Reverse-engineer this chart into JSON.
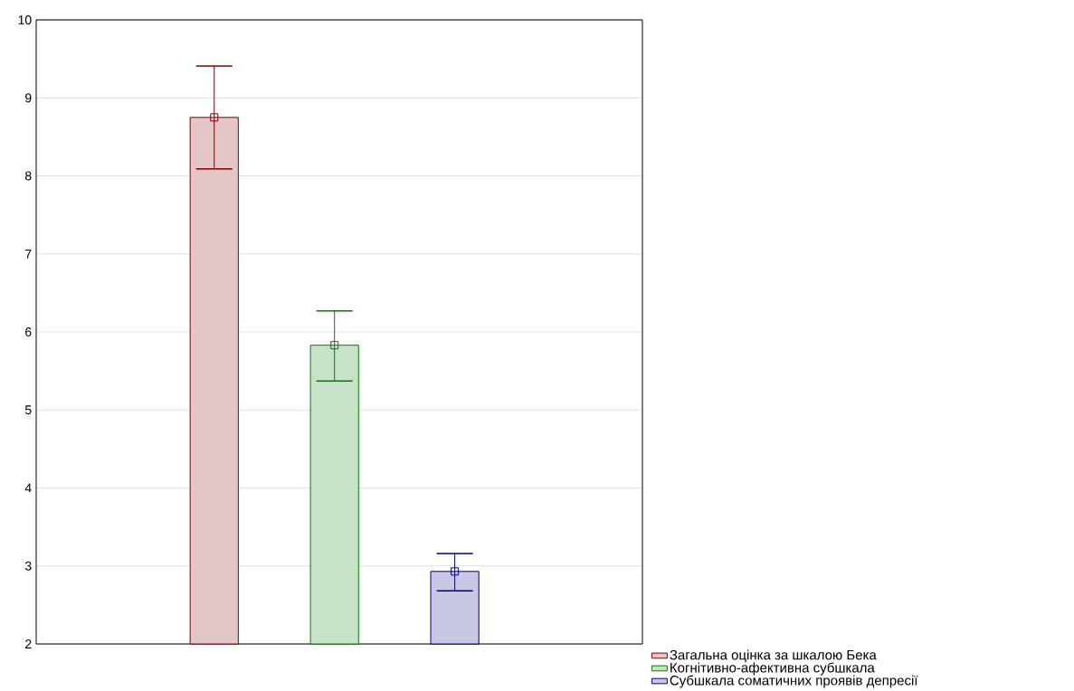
{
  "chart_data": {
    "type": "bar",
    "categories": [
      null,
      null,
      null
    ],
    "series": [
      {
        "name": "Загальна оцінка за шкалою Бека",
        "color": "#800000",
        "values": [
          8.75,
          null,
          null
        ],
        "errors": [
          [
            8.09,
            9.41
          ],
          null,
          null
        ]
      },
      {
        "name": "Когнітивно-афективна субшкала",
        "color": "#008000",
        "values": [
          null,
          5.83,
          null
        ],
        "errors": [
          null,
          [
            5.37,
            6.27
          ],
          null
        ]
      },
      {
        "name": "Субшкала соматичних проявів депресії",
        "color": "#000080",
        "values": [
          null,
          null,
          2.93
        ],
        "errors": [
          null,
          null,
          [
            2.68,
            3.16
          ]
        ]
      },
      {
        "type": "scatter",
        "color": "#800000",
        "values": [
          8.75,
          null,
          null
        ]
      },
      {
        "type": "scatter",
        "color": "#008000",
        "values": [
          null,
          5.83,
          null
        ]
      },
      {
        "type": "scatter",
        "color": "#000080",
        "values": [
          null,
          null,
          2.93
        ]
      }
    ],
    "ylim": [
      2,
      10
    ],
    "yticks": [
      2,
      3,
      4,
      5,
      6,
      7,
      8,
      9,
      10
    ],
    "grid": "y",
    "legend": "bottom right",
    "marker": "square"
  }
}
